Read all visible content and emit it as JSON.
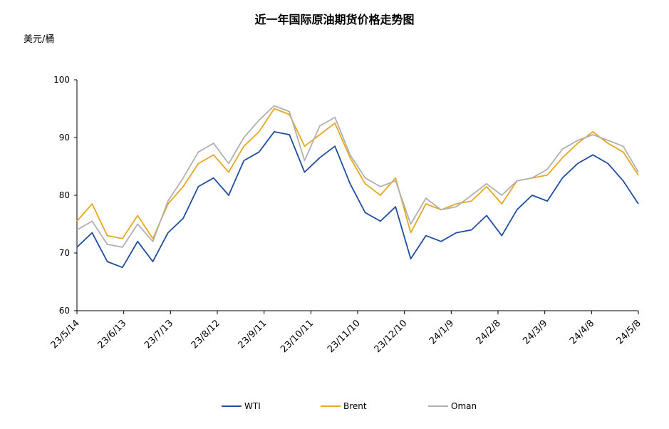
{
  "chart_data": {
    "type": "line",
    "title": "近一年国际原油期货价格走势图",
    "ylabel": "美元/桶",
    "ylim": [
      60,
      100
    ],
    "yticks": [
      60,
      70,
      80,
      90,
      100
    ],
    "x_tick_labels": [
      "23/5/14",
      "23/6/13",
      "23/7/13",
      "23/8/12",
      "23/9/11",
      "23/10/11",
      "23/11/10",
      "23/12/10",
      "24/1/9",
      "24/2/8",
      "24/3/9",
      "24/4/8",
      "24/5/8"
    ],
    "x": [
      "23/5/14",
      "23/5/23",
      "23/6/1",
      "23/6/13",
      "23/6/22",
      "23/7/1",
      "23/7/13",
      "23/7/22",
      "23/8/1",
      "23/8/12",
      "23/8/21",
      "23/9/1",
      "23/9/11",
      "23/9/19",
      "23/9/27",
      "23/10/4",
      "23/10/11",
      "23/10/19",
      "23/10/28",
      "23/11/10",
      "23/11/19",
      "23/11/28",
      "23/12/10",
      "23/12/19",
      "23/12/28",
      "24/1/9",
      "24/1/18",
      "24/1/28",
      "24/2/8",
      "24/2/17",
      "24/2/27",
      "24/3/9",
      "24/3/18",
      "24/3/28",
      "24/4/8",
      "24/4/17",
      "24/4/27",
      "24/5/8"
    ],
    "series": [
      {
        "name": "WTI",
        "color": "#1f4e9e",
        "values": [
          71.0,
          73.5,
          68.5,
          67.5,
          72.0,
          68.5,
          73.5,
          76.0,
          81.5,
          83.0,
          80.0,
          86.0,
          87.5,
          91.0,
          90.5,
          84.0,
          86.5,
          88.5,
          82.0,
          77.0,
          75.5,
          78.0,
          69.0,
          73.0,
          72.0,
          73.5,
          74.0,
          76.5,
          73.0,
          77.5,
          80.0,
          79.0,
          83.0,
          85.5,
          87.0,
          85.5,
          82.5,
          78.5
        ]
      },
      {
        "name": "Brent",
        "color": "#e6a820",
        "values": [
          75.5,
          78.5,
          73.0,
          72.5,
          76.5,
          72.5,
          78.5,
          81.5,
          85.5,
          87.0,
          84.0,
          88.5,
          91.0,
          95.0,
          94.0,
          88.5,
          90.5,
          92.5,
          86.5,
          82.0,
          80.0,
          83.0,
          73.5,
          78.5,
          77.5,
          78.5,
          79.0,
          81.5,
          78.5,
          82.5,
          83.0,
          83.5,
          86.5,
          89.0,
          91.0,
          89.0,
          87.5,
          83.5
        ]
      },
      {
        "name": "Oman",
        "color": "#b0b0b0",
        "values": [
          74.0,
          75.5,
          71.5,
          71.0,
          75.0,
          72.0,
          79.0,
          83.0,
          87.5,
          89.0,
          85.5,
          90.0,
          93.0,
          95.5,
          94.5,
          86.0,
          92.0,
          93.5,
          87.0,
          83.0,
          81.5,
          82.5,
          75.0,
          79.5,
          77.5,
          78.0,
          80.0,
          82.0,
          80.0,
          82.5,
          83.0,
          84.5,
          88.0,
          89.5,
          90.5,
          89.5,
          88.5,
          84.0
        ]
      }
    ],
    "grid": false,
    "legend": "bottom"
  }
}
